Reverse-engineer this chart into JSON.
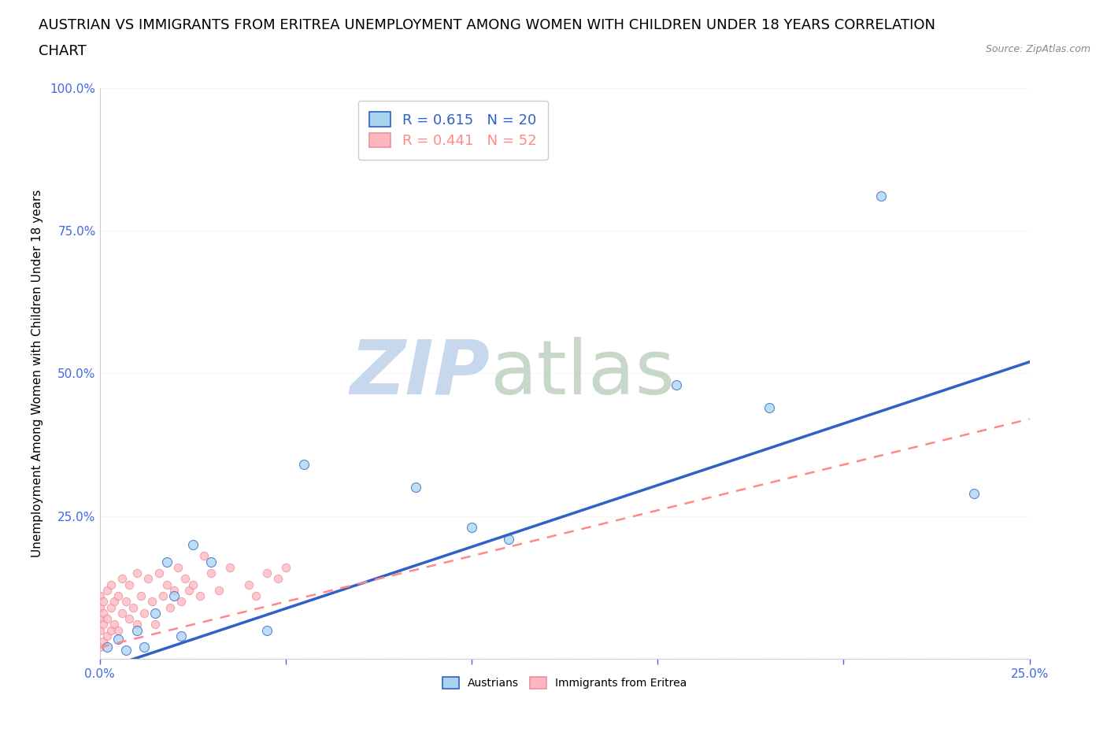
{
  "title_line1": "AUSTRIAN VS IMMIGRANTS FROM ERITREA UNEMPLOYMENT AMONG WOMEN WITH CHILDREN UNDER 18 YEARS CORRELATION",
  "title_line2": "CHART",
  "source": "Source: ZipAtlas.com",
  "ylabel": "Unemployment Among Women with Children Under 18 years",
  "xlabel": "",
  "xlim": [
    0.0,
    0.25
  ],
  "ylim": [
    0.0,
    1.0
  ],
  "xticks": [
    0.0,
    0.05,
    0.1,
    0.15,
    0.2,
    0.25
  ],
  "yticks": [
    0.0,
    0.25,
    0.5,
    0.75,
    1.0
  ],
  "xticklabels": [
    "0.0%",
    "",
    "",
    "",
    "",
    "25.0%"
  ],
  "yticklabels": [
    "",
    "25.0%",
    "50.0%",
    "75.0%",
    "100.0%"
  ],
  "austrians_x": [
    0.002,
    0.005,
    0.007,
    0.01,
    0.012,
    0.015,
    0.018,
    0.02,
    0.022,
    0.025,
    0.03,
    0.045,
    0.055,
    0.085,
    0.1,
    0.11,
    0.155,
    0.18,
    0.21,
    0.235
  ],
  "austrians_y": [
    0.02,
    0.035,
    0.015,
    0.05,
    0.02,
    0.08,
    0.17,
    0.11,
    0.04,
    0.2,
    0.17,
    0.05,
    0.34,
    0.3,
    0.23,
    0.21,
    0.48,
    0.44,
    0.81,
    0.29
  ],
  "eritreans_x": [
    0.0,
    0.0,
    0.0,
    0.0,
    0.0,
    0.001,
    0.001,
    0.001,
    0.001,
    0.002,
    0.002,
    0.002,
    0.003,
    0.003,
    0.003,
    0.004,
    0.004,
    0.005,
    0.005,
    0.006,
    0.006,
    0.007,
    0.008,
    0.008,
    0.009,
    0.01,
    0.01,
    0.011,
    0.012,
    0.013,
    0.014,
    0.015,
    0.016,
    0.017,
    0.018,
    0.019,
    0.02,
    0.021,
    0.022,
    0.023,
    0.024,
    0.025,
    0.027,
    0.028,
    0.03,
    0.032,
    0.035,
    0.04,
    0.042,
    0.045,
    0.048,
    0.05
  ],
  "eritreans_y": [
    0.02,
    0.05,
    0.07,
    0.09,
    0.11,
    0.03,
    0.06,
    0.08,
    0.1,
    0.04,
    0.07,
    0.12,
    0.05,
    0.09,
    0.13,
    0.06,
    0.1,
    0.05,
    0.11,
    0.08,
    0.14,
    0.1,
    0.07,
    0.13,
    0.09,
    0.06,
    0.15,
    0.11,
    0.08,
    0.14,
    0.1,
    0.06,
    0.15,
    0.11,
    0.13,
    0.09,
    0.12,
    0.16,
    0.1,
    0.14,
    0.12,
    0.13,
    0.11,
    0.18,
    0.15,
    0.12,
    0.16,
    0.13,
    0.11,
    0.15,
    0.14,
    0.16
  ],
  "R_austrians": 0.615,
  "N_austrians": 20,
  "R_eritreans": 0.441,
  "N_eritreans": 52,
  "austrians_line_x0": 0.0,
  "austrians_line_y0": -0.02,
  "austrians_line_x1": 0.25,
  "austrians_line_y1": 0.52,
  "eritreans_line_x0": 0.0,
  "eritreans_line_y0": 0.02,
  "eritreans_line_x1": 0.25,
  "eritreans_line_y1": 0.42,
  "color_austrians": "#A8D4F0",
  "color_eritreans": "#FFB6C1",
  "color_line_austrians": "#3060C8",
  "color_line_eritreans": "#FF8888",
  "color_axis": "#4169E1",
  "color_grid": "#E8E8E8",
  "watermark_zip_color": "#C8D8EC",
  "watermark_atlas_color": "#C8D8C8",
  "background_color": "#FFFFFF",
  "title_fontsize": 13,
  "axis_fontsize": 11,
  "tick_fontsize": 11,
  "legend_fontsize": 13
}
